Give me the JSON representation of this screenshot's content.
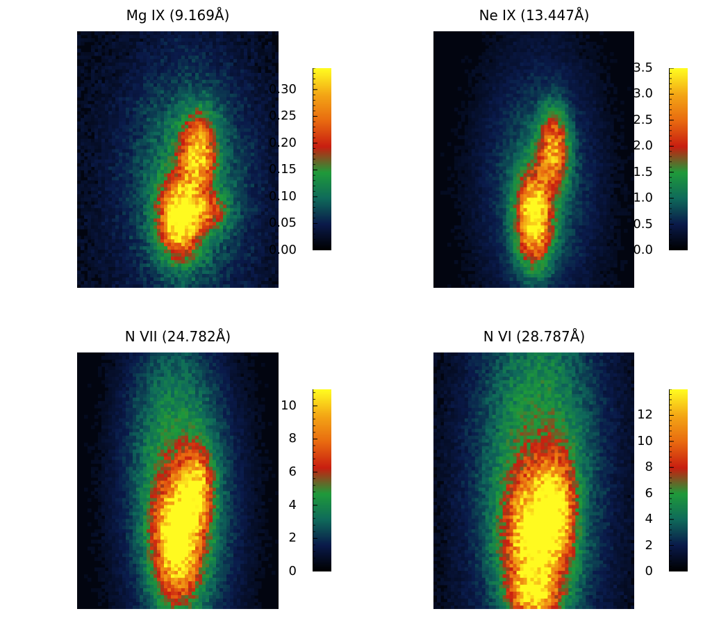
{
  "colormap": [
    "#000000",
    "#0a1a4a",
    "#0f6a5a",
    "#1f9a3a",
    "#c81e10",
    "#e86a10",
    "#f3a515",
    "#fffa20"
  ],
  "chart_data": [
    {
      "type": "heatmap",
      "title": "Mg IX (9.169Å)",
      "colorbar": {
        "min": 0.0,
        "max": 0.34,
        "ticks": [
          "0.00",
          "0.05",
          "0.10",
          "0.15",
          "0.20",
          "0.25",
          "0.30"
        ]
      },
      "background_level": 0.02,
      "blobs": [
        {
          "cx": 0.51,
          "cy": 0.73,
          "sx": 0.07,
          "sy": 0.1,
          "amp": 0.3
        },
        {
          "cx": 0.6,
          "cy": 0.47,
          "sx": 0.06,
          "sy": 0.1,
          "amp": 0.22
        },
        {
          "cx": 0.55,
          "cy": 0.6,
          "sx": 0.22,
          "sy": 0.33,
          "amp": 0.1
        },
        {
          "cx": 0.66,
          "cy": 0.7,
          "sx": 0.06,
          "sy": 0.05,
          "amp": 0.12
        }
      ]
    },
    {
      "type": "heatmap",
      "title": "Ne IX (13.447Å)",
      "colorbar": {
        "min": 0.0,
        "max": 3.5,
        "ticks": [
          "0.0",
          "0.5",
          "1.0",
          "1.5",
          "2.0",
          "2.5",
          "3.0",
          "3.5"
        ]
      },
      "background_level": 0.1,
      "blobs": [
        {
          "cx": 0.5,
          "cy": 0.73,
          "sx": 0.06,
          "sy": 0.12,
          "amp": 3.1
        },
        {
          "cx": 0.6,
          "cy": 0.46,
          "sx": 0.05,
          "sy": 0.1,
          "amp": 2.2
        },
        {
          "cx": 0.53,
          "cy": 0.6,
          "sx": 0.2,
          "sy": 0.35,
          "amp": 0.9
        }
      ]
    },
    {
      "type": "heatmap",
      "title": "N VII (24.782Å)",
      "colorbar": {
        "min": 0,
        "max": 11,
        "ticks": [
          "0",
          "2",
          "4",
          "6",
          "8",
          "10"
        ]
      },
      "background_level": 0.3,
      "blobs": [
        {
          "cx": 0.5,
          "cy": 0.73,
          "sx": 0.08,
          "sy": 0.16,
          "amp": 9.5
        },
        {
          "cx": 0.6,
          "cy": 0.53,
          "sx": 0.05,
          "sy": 0.1,
          "amp": 6
        },
        {
          "cx": 0.52,
          "cy": 0.62,
          "sx": 0.19,
          "sy": 0.4,
          "amp": 3.8
        },
        {
          "cx": 0.46,
          "cy": 0.2,
          "sx": 0.16,
          "sy": 0.35,
          "amp": 1.5
        }
      ]
    },
    {
      "type": "heatmap",
      "title": "N VI (28.787Å)",
      "colorbar": {
        "min": 0,
        "max": 14,
        "ticks": [
          "0",
          "2",
          "4",
          "6",
          "8",
          "10",
          "12"
        ]
      },
      "background_level": 0.6,
      "blobs": [
        {
          "cx": 0.5,
          "cy": 0.73,
          "sx": 0.1,
          "sy": 0.18,
          "amp": 11
        },
        {
          "cx": 0.62,
          "cy": 0.6,
          "sx": 0.06,
          "sy": 0.14,
          "amp": 7
        },
        {
          "cx": 0.52,
          "cy": 0.45,
          "sx": 0.22,
          "sy": 0.55,
          "amp": 5.5
        },
        {
          "cx": 0.5,
          "cy": 0.95,
          "sx": 0.08,
          "sy": 0.06,
          "amp": 6
        }
      ]
    }
  ]
}
